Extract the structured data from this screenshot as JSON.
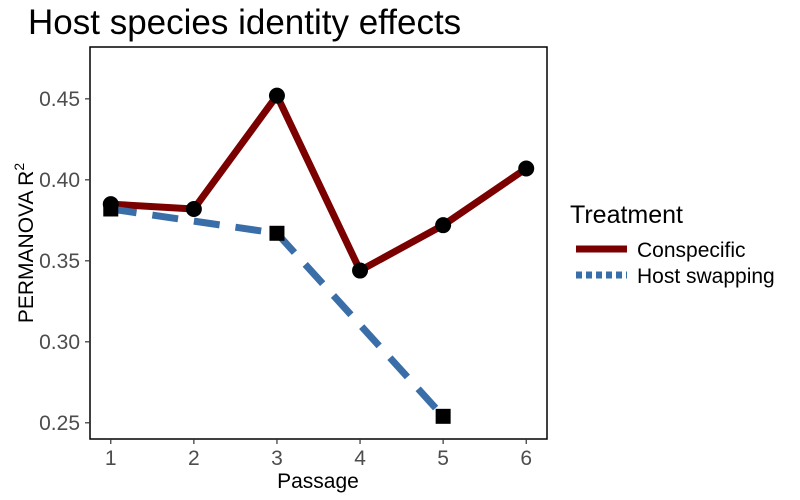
{
  "chart_data": {
    "type": "line",
    "title": "Host species identity effects",
    "xlabel": "Passage",
    "ylabel": "PERMANOVA R",
    "ylabel_superscript": "2",
    "x": [
      1,
      2,
      3,
      4,
      5,
      6
    ],
    "x_tick_labels": [
      "1",
      "2",
      "3",
      "4",
      "5",
      "6"
    ],
    "xlim": [
      0.75,
      6.25
    ],
    "ylim": [
      0.24,
      0.482
    ],
    "y_ticks": [
      0.25,
      0.3,
      0.35,
      0.4,
      0.45
    ],
    "y_tick_labels": [
      "0.25",
      "0.30",
      "0.35",
      "0.40",
      "0.45"
    ],
    "grid": false,
    "legend": {
      "title": "Treatment",
      "placement": "right"
    },
    "series": [
      {
        "name": "Conspecific",
        "x": [
          1,
          2,
          3,
          4,
          5,
          6
        ],
        "values": [
          0.385,
          0.382,
          0.452,
          0.344,
          0.372,
          0.407
        ],
        "color": "#7b0000",
        "line_style": "solid",
        "marker": "circle"
      },
      {
        "name": "Host swapping",
        "x": [
          1,
          3,
          5
        ],
        "values": [
          0.382,
          0.367,
          0.254
        ],
        "color": "#3a6ea8",
        "line_style": "dashed",
        "marker": "square"
      }
    ]
  }
}
